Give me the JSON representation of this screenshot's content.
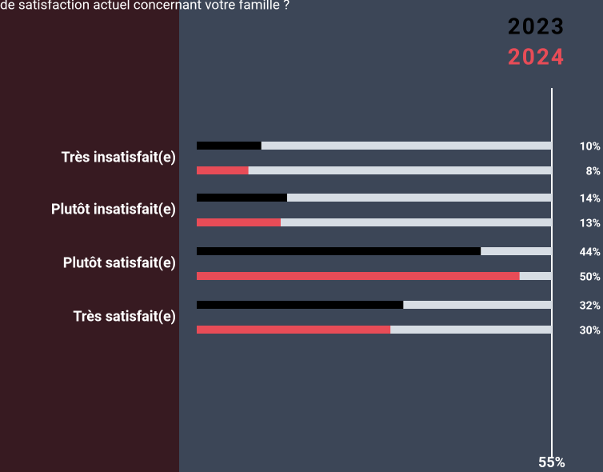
{
  "chart_data": {
    "type": "bar",
    "title": "de satisfaction actuel concernant votre famille ?",
    "categories": [
      "Très insatisfait(e)",
      "Plutôt insatisfait(e)",
      "Plutôt satisfait(e)",
      "Très satisfait(e)"
    ],
    "series": [
      {
        "name": "2023",
        "color": "#000000",
        "values": [
          10,
          14,
          44,
          32
        ],
        "value_labels": [
          "10%",
          "14%",
          "44%",
          "32%"
        ]
      },
      {
        "name": "2024",
        "color": "#e84c57",
        "values": [
          8,
          13,
          50,
          30
        ],
        "value_labels": [
          "8%",
          "13%",
          "50%",
          "30%"
        ]
      }
    ],
    "xlim": [
      0,
      55
    ],
    "xticks": [
      {
        "value": 55,
        "label": "55%"
      }
    ],
    "legend": "top-right"
  }
}
